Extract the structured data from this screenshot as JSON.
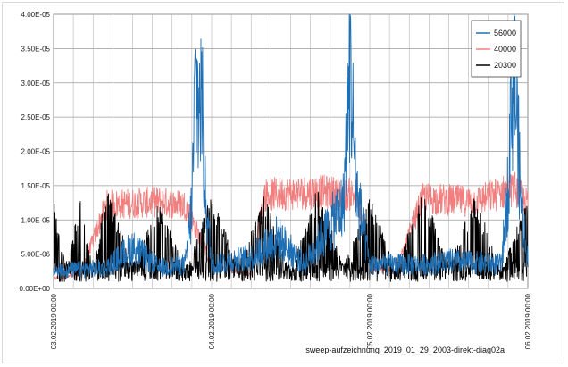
{
  "chart_data": {
    "type": "line",
    "title": "",
    "xlabel": "",
    "ylabel": "",
    "caption": "sweep-aufzeichnung_2019_01_29_2003-direkt-diag02a",
    "x_range": [
      "03.02.2019 00:00",
      "06.02.2019 00:00"
    ],
    "x_tick_labels": [
      "03.02.2019 00:00",
      "04.02.2019 00:00",
      "05.02.2019 00:00",
      "06.02.2019 00:00"
    ],
    "y_tick_labels": [
      "0.00E+00",
      "5.00E-06",
      "1.00E-05",
      "1.50E-05",
      "2.00E-05",
      "2.50E-05",
      "3.00E-05",
      "3.50E-05",
      "4.00E-05"
    ],
    "ylim": [
      0,
      4e-05
    ],
    "grid": true,
    "legend_position": "top-right",
    "series": [
      {
        "name": "56000",
        "color": "#1f6fb4",
        "points": [
          [
            "03.02.2019 00:00",
            2.5e-06
          ],
          [
            "03.02.2019 08:00",
            3e-06
          ],
          [
            "03.02.2019 12:00",
            6e-06
          ],
          [
            "03.02.2019 16:00",
            3e-06
          ],
          [
            "03.02.2019 20:00",
            3.5e-06
          ],
          [
            "03.02.2019 21:00",
            1.2e-05
          ],
          [
            "03.02.2019 21:30",
            2.9e-05
          ],
          [
            "03.02.2019 22:00",
            2.7e-05
          ],
          [
            "03.02.2019 22:30",
            2.8e-05
          ],
          [
            "03.02.2019 23:00",
            1.4e-05
          ],
          [
            "04.02.2019 00:00",
            3.5e-06
          ],
          [
            "04.02.2019 06:00",
            4.5e-06
          ],
          [
            "04.02.2019 10:00",
            7.5e-06
          ],
          [
            "04.02.2019 14:00",
            3.5e-06
          ],
          [
            "04.02.2019 20:00",
            1.2e-05
          ],
          [
            "04.02.2019 21:00",
            3.3e-05
          ],
          [
            "04.02.2019 22:00",
            1.4e-05
          ],
          [
            "05.02.2019 00:00",
            3.5e-06
          ],
          [
            "05.02.2019 08:00",
            3.5e-06
          ],
          [
            "05.02.2019 12:00",
            4e-06
          ],
          [
            "05.02.2019 20:00",
            3.5e-06
          ],
          [
            "05.02.2019 21:00",
            1.5e-05
          ],
          [
            "05.02.2019 21:30",
            2.9e-05
          ],
          [
            "05.02.2019 22:00",
            3.1e-05
          ],
          [
            "05.02.2019 23:00",
            1.2e-05
          ],
          [
            "06.02.2019 00:00",
            4e-06
          ]
        ]
      },
      {
        "name": "40000",
        "color": "#f08080",
        "points": [
          [
            "03.02.2019 00:00",
            1.5e-06
          ],
          [
            "03.02.2019 04:00",
            2e-06
          ],
          [
            "03.02.2019 08:00",
            1.25e-05
          ],
          [
            "03.02.2019 16:00",
            1.3e-05
          ],
          [
            "03.02.2019 20:00",
            1.25e-05
          ],
          [
            "04.02.2019 00:00",
            3.5e-06
          ],
          [
            "04.02.2019 04:00",
            2.5e-06
          ],
          [
            "04.02.2019 06:00",
            2e-06
          ],
          [
            "04.02.2019 08:00",
            1.4e-05
          ],
          [
            "04.02.2019 16:00",
            1.45e-05
          ],
          [
            "04.02.2019 22:00",
            1.4e-05
          ],
          [
            "05.02.2019 00:00",
            3e-06
          ],
          [
            "05.02.2019 04:00",
            2.5e-06
          ],
          [
            "05.02.2019 08:00",
            1.35e-05
          ],
          [
            "05.02.2019 16:00",
            1.3e-05
          ],
          [
            "05.02.2019 22:00",
            1.5e-05
          ],
          [
            "06.02.2019 00:00",
            1.25e-05
          ]
        ]
      },
      {
        "name": "20300",
        "color": "#000000",
        "points": [
          [
            "03.02.2019 00:00",
            1.2e-05
          ],
          [
            "03.02.2019 02:00",
            2e-06
          ],
          [
            "03.02.2019 04:00",
            1.2e-05
          ],
          [
            "03.02.2019 06:00",
            2e-06
          ],
          [
            "03.02.2019 08:00",
            1.3e-05
          ],
          [
            "03.02.2019 12:00",
            3e-06
          ],
          [
            "03.02.2019 16:00",
            1.1e-05
          ],
          [
            "03.02.2019 20:00",
            2.5e-06
          ],
          [
            "04.02.2019 00:00",
            1.2e-05
          ],
          [
            "04.02.2019 04:00",
            3e-06
          ],
          [
            "04.02.2019 08:00",
            1.2e-05
          ],
          [
            "04.02.2019 12:00",
            2e-06
          ],
          [
            "04.02.2019 16:00",
            1.3e-05
          ],
          [
            "04.02.2019 20:00",
            3e-06
          ],
          [
            "05.02.2019 00:00",
            1.2e-05
          ],
          [
            "05.02.2019 04:00",
            2e-06
          ],
          [
            "05.02.2019 08:00",
            1.3e-05
          ],
          [
            "05.02.2019 12:00",
            3e-06
          ],
          [
            "05.02.2019 16:00",
            1.2e-05
          ],
          [
            "05.02.2019 20:00",
            2e-06
          ],
          [
            "06.02.2019 00:00",
            1.2e-05
          ]
        ]
      }
    ]
  }
}
